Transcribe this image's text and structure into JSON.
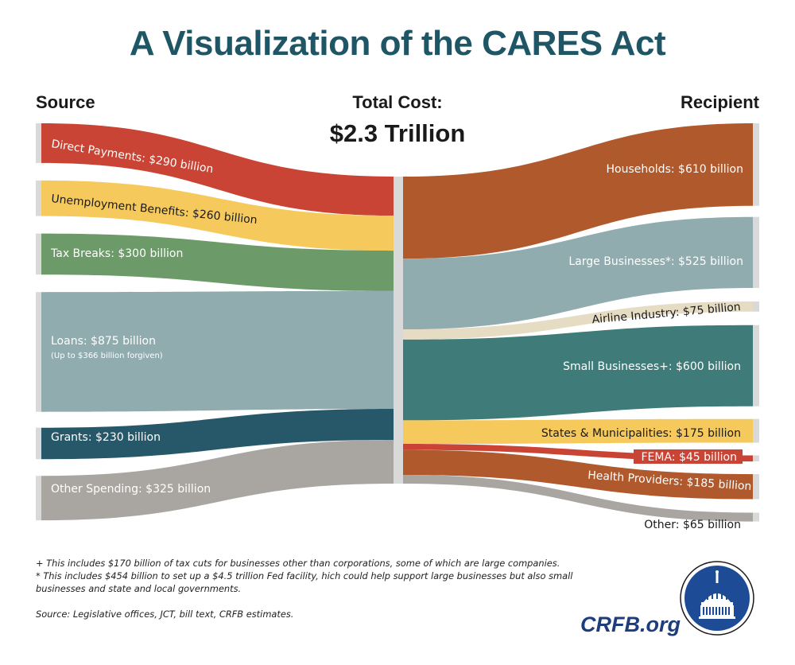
{
  "title": "A Visualization of the CARES Act",
  "headers": {
    "source": "Source",
    "total": "Total Cost:",
    "total_value": "$2.3 Trillion",
    "recipient": "Recipient"
  },
  "chart_data": {
    "type": "sankey",
    "title": "A Visualization of the CARES Act",
    "total_label": "Total Cost: $2.3 Trillion",
    "units": "billion USD",
    "sources": [
      {
        "name": "Direct Payments",
        "value": 290,
        "label": "Direct Payments: $290 billion",
        "color": "#c94434",
        "text_color": "#ffffff"
      },
      {
        "name": "Unemployment Benefits",
        "value": 260,
        "label": "Unemployment Benefits: $260 billion",
        "color": "#f6c95c",
        "text_color": "#1a1a1a"
      },
      {
        "name": "Tax Breaks",
        "value": 300,
        "label": "Tax Breaks: $300 billion",
        "color": "#6c9a68",
        "text_color": "#ffffff"
      },
      {
        "name": "Loans",
        "value": 875,
        "label": "Loans: $875 billion",
        "sublabel": "(Up to $366 billion forgiven)",
        "color": "#90acae",
        "text_color": "#ffffff"
      },
      {
        "name": "Grants",
        "value": 230,
        "label": "Grants: $230 billion",
        "color": "#265869",
        "text_color": "#ffffff"
      },
      {
        "name": "Other Spending",
        "value": 325,
        "label": "Other Spending: $325 billion",
        "color": "#a9a6a2",
        "text_color": "#ffffff"
      }
    ],
    "recipients": [
      {
        "name": "Households",
        "value": 610,
        "label": "Households: $610 billion",
        "color": "#b0592c",
        "text_color": "#ffffff"
      },
      {
        "name": "Large Businesses",
        "value": 525,
        "label": "Large Businesses*: $525 billion",
        "color": "#90acae",
        "text_color": "#ffffff"
      },
      {
        "name": "Airline Industry",
        "value": 75,
        "label": "Airline Industry: $75 billion",
        "color": "#e6dcc4",
        "text_color": "#1a1a1a"
      },
      {
        "name": "Small Businesses",
        "value": 600,
        "label": "Small Businesses+: $600 billion",
        "color": "#3f7b78",
        "text_color": "#ffffff"
      },
      {
        "name": "States & Municipalities",
        "value": 175,
        "label": "States & Municipalities: $175 billion",
        "color": "#f6c95c",
        "text_color": "#1a1a1a"
      },
      {
        "name": "FEMA",
        "value": 45,
        "label": "FEMA: $45 billion",
        "color": "#c94434",
        "text_color": "#ffffff"
      },
      {
        "name": "Health Providers",
        "value": 185,
        "label": "Health Providers: $185 billion",
        "color": "#b0592c",
        "text_color": "#ffffff"
      },
      {
        "name": "Other",
        "value": 65,
        "label": "Other: $65 billion",
        "color": "#a9a6a2",
        "text_color": "#1a1a1a"
      }
    ]
  },
  "footnotes": {
    "plus": "+ This includes $170 billion of tax cuts for businesses other than corporations, some of which are large companies.",
    "star": "* This includes $454 billion to set up a $4.5 trillion Fed facility, hich could help support large businesses but also small businesses and state and local governments.",
    "source": "Source: Legislative offices, JCT, bill text, CRFB estimates."
  },
  "brand": {
    "text": "CRFB.org",
    "logo": "capitol-dome-icon"
  }
}
